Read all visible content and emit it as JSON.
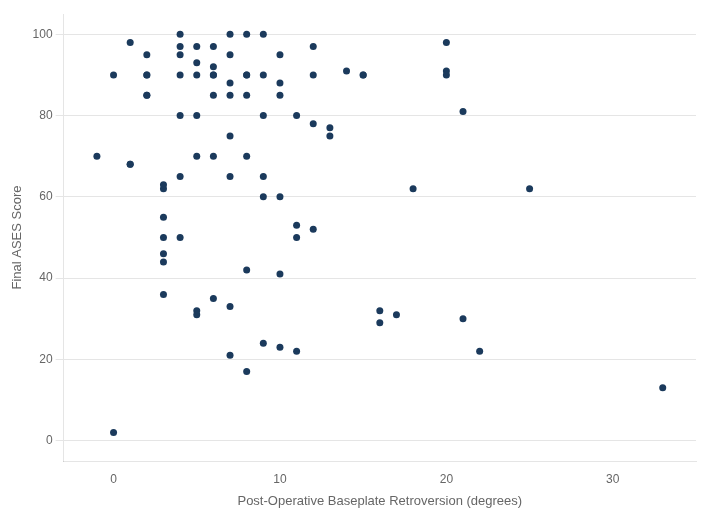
{
  "chart_data": {
    "type": "scatter",
    "x": [
      -1,
      0,
      0,
      1,
      1,
      1,
      2,
      2,
      2,
      2,
      2,
      3,
      3,
      3,
      3,
      3,
      3,
      3,
      4,
      4,
      4,
      4,
      4,
      4,
      4,
      5,
      5,
      5,
      5,
      5,
      5,
      5,
      6,
      6,
      6,
      6,
      6,
      6,
      6,
      7,
      7,
      7,
      7,
      7,
      7,
      7,
      7,
      8,
      8,
      8,
      8,
      8,
      8,
      8,
      9,
      9,
      9,
      9,
      9,
      9,
      10,
      10,
      10,
      10,
      10,
      10,
      11,
      11,
      11,
      11,
      12,
      12,
      12,
      12,
      13,
      13,
      14,
      15,
      15,
      16,
      16,
      17,
      18,
      20,
      20,
      20,
      21,
      21,
      22,
      25,
      33
    ],
    "values": [
      70,
      2,
      90,
      68,
      68,
      98,
      90,
      90,
      95,
      85,
      85,
      62,
      63,
      55,
      50,
      46,
      44,
      36,
      100,
      97,
      95,
      90,
      80,
      65,
      50,
      97,
      93,
      90,
      80,
      70,
      32,
      31,
      97,
      92,
      90,
      90,
      85,
      70,
      35,
      100,
      95,
      88,
      85,
      75,
      65,
      33,
      21,
      100,
      90,
      90,
      85,
      70,
      42,
      17,
      100,
      90,
      80,
      65,
      60,
      24,
      95,
      88,
      85,
      60,
      41,
      23,
      80,
      53,
      50,
      22,
      97,
      90,
      78,
      52,
      77,
      75,
      91,
      90,
      90,
      32,
      29,
      31,
      62,
      98,
      91,
      90,
      81,
      30,
      22,
      62,
      13
    ],
    "color": "#1b3a5c",
    "x_label": "Post-Operative Baseplate Retroversion (degrees)",
    "y_label": "Final ASES Score",
    "xlim": [
      -3,
      35
    ],
    "ylim": [
      -5,
      105
    ],
    "xticks": [
      0,
      10,
      20,
      30
    ],
    "yticks": [
      0,
      20,
      40,
      60,
      80,
      100
    ],
    "grid": "y"
  }
}
